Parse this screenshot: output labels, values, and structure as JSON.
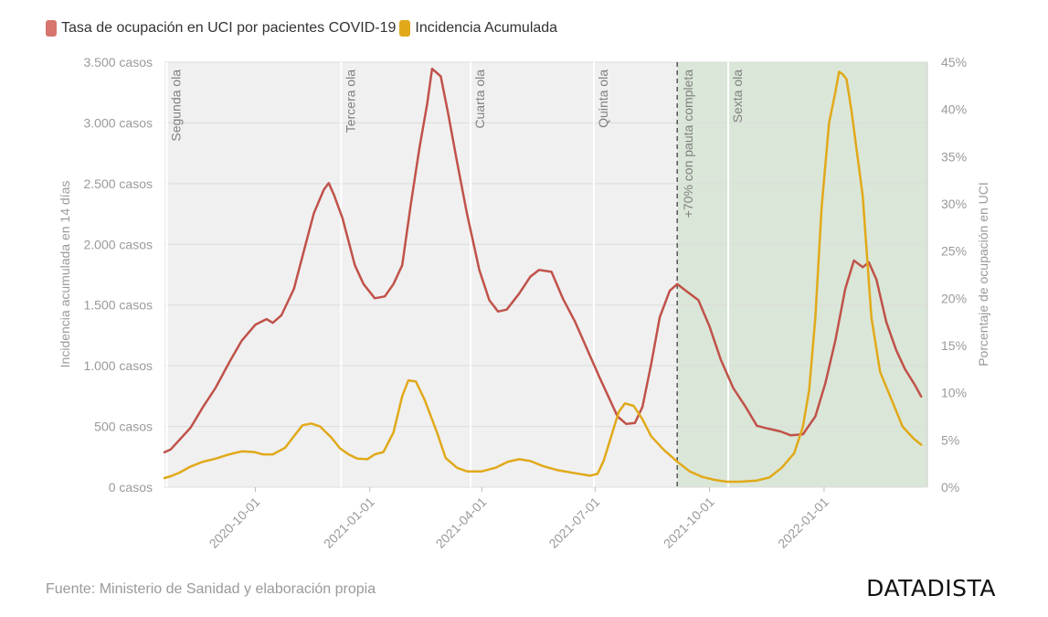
{
  "legend": {
    "uci_label": "Tasa de ocupación en UCI por pacientes COVID-19",
    "ia_label": "Incidencia Acumulada"
  },
  "source": "Fuente: Ministerio de Sanidad y elaboración propia",
  "brand": "DATADISTA",
  "colors": {
    "uci": "#c0524a",
    "uci_swatch": "#d6766e",
    "ia": "#e1a91a",
    "plot_bg": "#f0f0f0",
    "shaded_bg": "#dae6d7",
    "grid": "#dcdcdc",
    "axis_text": "#9a9a9a",
    "annotation_text": "#808080"
  },
  "chart_data": {
    "type": "line",
    "x_range": [
      "2020-07-20",
      "2022-03-25"
    ],
    "xticks": [
      "2020-10-01",
      "2021-01-01",
      "2021-04-01",
      "2021-07-01",
      "2021-10-01",
      "2022-01-01"
    ],
    "y_left": {
      "label": "Incidencia acumulada en 14 días",
      "ylim": [
        0,
        3500
      ],
      "ticks": [
        0,
        500,
        1000,
        1500,
        2000,
        2500,
        3000,
        3500
      ],
      "tick_labels": [
        "0 casos",
        "500 casos",
        "1.000 casos",
        "1.500 casos",
        "2.000 casos",
        "2.500 casos",
        "3.000 casos",
        "3.500 casos"
      ]
    },
    "y_right": {
      "label": "Porcentaje de ocupación en UCI",
      "ylim": [
        0,
        45
      ],
      "ticks": [
        0,
        5,
        10,
        15,
        20,
        25,
        30,
        35,
        40,
        45
      ],
      "tick_labels": [
        "0%",
        "5%",
        "10%",
        "15%",
        "20%",
        "25%",
        "30%",
        "35%",
        "40%",
        "45%"
      ]
    },
    "waves": [
      {
        "label": "Segunda ola",
        "date": "2020-07-22"
      },
      {
        "label": "Tercera ola",
        "date": "2020-12-09"
      },
      {
        "label": "Cuarta ola",
        "date": "2021-03-23"
      },
      {
        "label": "Quinta ola",
        "date": "2021-06-30"
      },
      {
        "label": "Sexta ola",
        "date": "2021-10-16"
      }
    ],
    "vaccination_marker": {
      "label": "+70% con pauta completa",
      "date": "2021-09-05"
    },
    "shaded_region": {
      "start": "2021-09-05",
      "end": "2022-03-25"
    },
    "series": [
      {
        "name": "Tasa de ocupación en UCI por pacientes COVID-19",
        "axis": "right",
        "points": [
          [
            "2020-07-20",
            3.7
          ],
          [
            "2020-07-25",
            4.0
          ],
          [
            "2020-08-01",
            5.0
          ],
          [
            "2020-08-10",
            6.3
          ],
          [
            "2020-08-20",
            8.5
          ],
          [
            "2020-08-30",
            10.5
          ],
          [
            "2020-09-10",
            13.2
          ],
          [
            "2020-09-20",
            15.5
          ],
          [
            "2020-10-01",
            17.2
          ],
          [
            "2020-10-10",
            17.8
          ],
          [
            "2020-10-15",
            17.4
          ],
          [
            "2020-10-22",
            18.2
          ],
          [
            "2020-11-01",
            21.0
          ],
          [
            "2020-11-10",
            25.5
          ],
          [
            "2020-11-17",
            29.0
          ],
          [
            "2020-11-25",
            31.5
          ],
          [
            "2020-11-29",
            32.2
          ],
          [
            "2020-12-03",
            31.0
          ],
          [
            "2020-12-10",
            28.5
          ],
          [
            "2020-12-20",
            23.5
          ],
          [
            "2020-12-27",
            21.5
          ],
          [
            "2021-01-05",
            20.0
          ],
          [
            "2021-01-13",
            20.2
          ],
          [
            "2021-01-20",
            21.5
          ],
          [
            "2021-01-27",
            23.5
          ],
          [
            "2021-02-03",
            30.0
          ],
          [
            "2021-02-10",
            36.0
          ],
          [
            "2021-02-16",
            40.5
          ],
          [
            "2021-02-20",
            44.3
          ],
          [
            "2021-02-27",
            43.5
          ],
          [
            "2021-03-05",
            39.5
          ],
          [
            "2021-03-12",
            34.5
          ],
          [
            "2021-03-20",
            29.0
          ],
          [
            "2021-03-30",
            23.0
          ],
          [
            "2021-04-07",
            19.8
          ],
          [
            "2021-04-14",
            18.6
          ],
          [
            "2021-04-21",
            18.8
          ],
          [
            "2021-05-01",
            20.5
          ],
          [
            "2021-05-10",
            22.3
          ],
          [
            "2021-05-17",
            23.0
          ],
          [
            "2021-05-27",
            22.8
          ],
          [
            "2021-06-05",
            20.0
          ],
          [
            "2021-06-15",
            17.5
          ],
          [
            "2021-06-25",
            14.5
          ],
          [
            "2021-07-05",
            11.5
          ],
          [
            "2021-07-12",
            9.5
          ],
          [
            "2021-07-19",
            7.5
          ],
          [
            "2021-07-26",
            6.7
          ],
          [
            "2021-08-02",
            6.8
          ],
          [
            "2021-08-08",
            8.5
          ],
          [
            "2021-08-15",
            13.0
          ],
          [
            "2021-08-22",
            18.0
          ],
          [
            "2021-08-30",
            20.8
          ],
          [
            "2021-09-05",
            21.5
          ],
          [
            "2021-09-12",
            20.8
          ],
          [
            "2021-09-22",
            19.8
          ],
          [
            "2021-10-01",
            17.0
          ],
          [
            "2021-10-10",
            13.5
          ],
          [
            "2021-10-20",
            10.5
          ],
          [
            "2021-10-30",
            8.5
          ],
          [
            "2021-11-08",
            6.5
          ],
          [
            "2021-11-17",
            6.2
          ],
          [
            "2021-11-27",
            5.9
          ],
          [
            "2021-12-05",
            5.5
          ],
          [
            "2021-12-15",
            5.6
          ],
          [
            "2021-12-25",
            7.5
          ],
          [
            "2022-01-02",
            11.0
          ],
          [
            "2022-01-10",
            15.5
          ],
          [
            "2022-01-18",
            21.0
          ],
          [
            "2022-01-25",
            24.0
          ],
          [
            "2022-02-01",
            23.3
          ],
          [
            "2022-02-06",
            23.8
          ],
          [
            "2022-02-12",
            22.0
          ],
          [
            "2022-02-20",
            17.5
          ],
          [
            "2022-02-28",
            14.5
          ],
          [
            "2022-03-07",
            12.5
          ],
          [
            "2022-03-15",
            10.8
          ],
          [
            "2022-03-20",
            9.6
          ]
        ]
      },
      {
        "name": "Incidencia Acumulada",
        "axis": "left",
        "points": [
          [
            "2020-07-20",
            75
          ],
          [
            "2020-07-25",
            90
          ],
          [
            "2020-08-01",
            120
          ],
          [
            "2020-08-10",
            170
          ],
          [
            "2020-08-20",
            210
          ],
          [
            "2020-08-30",
            235
          ],
          [
            "2020-09-10",
            270
          ],
          [
            "2020-09-20",
            295
          ],
          [
            "2020-09-30",
            290
          ],
          [
            "2020-10-07",
            270
          ],
          [
            "2020-10-15",
            270
          ],
          [
            "2020-10-25",
            325
          ],
          [
            "2020-11-01",
            420
          ],
          [
            "2020-11-08",
            510
          ],
          [
            "2020-11-15",
            525
          ],
          [
            "2020-11-22",
            500
          ],
          [
            "2020-12-01",
            410
          ],
          [
            "2020-12-08",
            320
          ],
          [
            "2020-12-15",
            270
          ],
          [
            "2020-12-22",
            235
          ],
          [
            "2020-12-30",
            230
          ],
          [
            "2021-01-05",
            270
          ],
          [
            "2021-01-12",
            290
          ],
          [
            "2021-01-20",
            450
          ],
          [
            "2021-01-27",
            750
          ],
          [
            "2021-02-01",
            880
          ],
          [
            "2021-02-07",
            870
          ],
          [
            "2021-02-14",
            720
          ],
          [
            "2021-02-24",
            450
          ],
          [
            "2021-03-03",
            240
          ],
          [
            "2021-03-12",
            160
          ],
          [
            "2021-03-20",
            130
          ],
          [
            "2021-04-01",
            130
          ],
          [
            "2021-04-12",
            160
          ],
          [
            "2021-04-22",
            210
          ],
          [
            "2021-05-01",
            230
          ],
          [
            "2021-05-10",
            215
          ],
          [
            "2021-05-20",
            175
          ],
          [
            "2021-06-01",
            140
          ],
          [
            "2021-06-15",
            115
          ],
          [
            "2021-06-27",
            95
          ],
          [
            "2021-07-03",
            110
          ],
          [
            "2021-07-08",
            220
          ],
          [
            "2021-07-14",
            420
          ],
          [
            "2021-07-20",
            620
          ],
          [
            "2021-07-25",
            690
          ],
          [
            "2021-08-01",
            670
          ],
          [
            "2021-08-08",
            560
          ],
          [
            "2021-08-15",
            420
          ],
          [
            "2021-08-25",
            310
          ],
          [
            "2021-09-05",
            210
          ],
          [
            "2021-09-15",
            130
          ],
          [
            "2021-09-25",
            85
          ],
          [
            "2021-10-05",
            60
          ],
          [
            "2021-10-15",
            45
          ],
          [
            "2021-10-25",
            45
          ],
          [
            "2021-11-08",
            55
          ],
          [
            "2021-11-18",
            80
          ],
          [
            "2021-11-28",
            160
          ],
          [
            "2021-12-08",
            280
          ],
          [
            "2021-12-15",
            500
          ],
          [
            "2021-12-20",
            800
          ],
          [
            "2021-12-25",
            1400
          ],
          [
            "2021-12-30",
            2300
          ],
          [
            "2022-01-05",
            3000
          ],
          [
            "2022-01-10",
            3250
          ],
          [
            "2022-01-13",
            3420
          ],
          [
            "2022-01-16",
            3400
          ],
          [
            "2022-01-19",
            3360
          ],
          [
            "2022-01-23",
            3100
          ],
          [
            "2022-02-01",
            2400
          ],
          [
            "2022-02-08",
            1400
          ],
          [
            "2022-02-15",
            950
          ],
          [
            "2022-02-25",
            700
          ],
          [
            "2022-03-05",
            500
          ],
          [
            "2022-03-14",
            400
          ],
          [
            "2022-03-20",
            350
          ]
        ]
      }
    ]
  }
}
